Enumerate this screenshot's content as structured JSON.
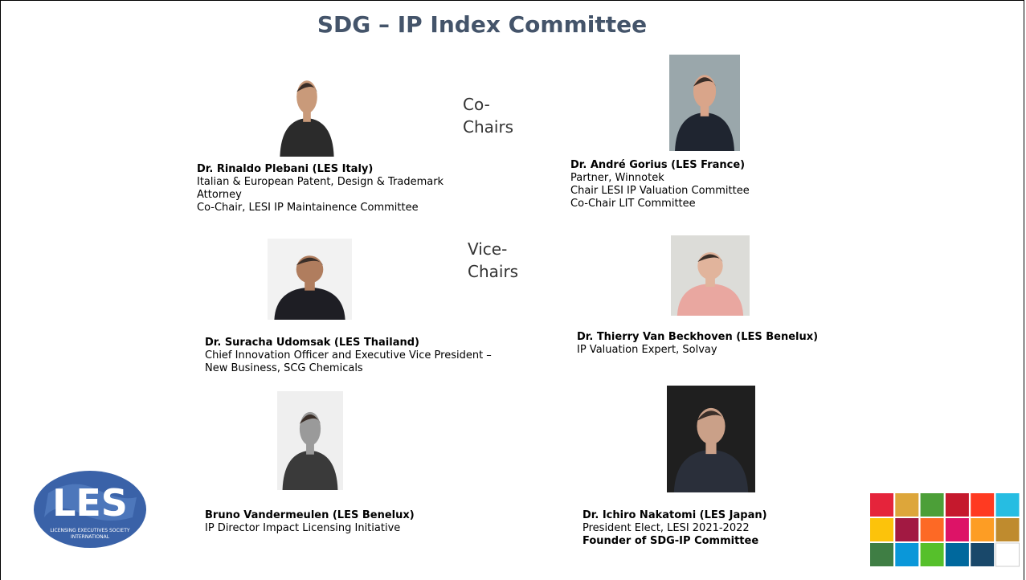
{
  "header": {
    "title": "SDG – IP Index Committee"
  },
  "roles": {
    "co_chairs": "Co-Chairs",
    "vice_chairs": "Vice-Chairs"
  },
  "people": [
    {
      "name": "Dr. Rinaldo Plebani (LES Italy)",
      "details": [
        " Italian & European Patent, Design & Trademark Attorney",
        "Co-Chair, LESI IP Maintainence Committee"
      ]
    },
    {
      "name": "Dr. André Gorius (LES France)",
      "details": [
        "Partner, Winnotek",
        "Chair LESI IP Valuation Committee",
        "Co-Chair LIT Committee"
      ]
    },
    {
      "name": "Dr. Suracha Udomsak (LES Thailand)",
      "details": [
        "Chief Innovation Officer and Executive Vice President – New Business, SCG Chemicals"
      ]
    },
    {
      "name": "Dr. Thierry Van Beckhoven (LES Benelux)",
      "details": [
        "IP Valuation Expert, Solvay"
      ]
    },
    {
      "name": "Bruno Vandermeulen (LES Benelux)",
      "details": [
        "IP Director Impact Licensing Initiative"
      ]
    },
    {
      "name": "Dr. Ichiro Nakatomi (LES Japan)",
      "details": [
        "President Elect, LESI 2021-2022"
      ],
      "note": "Founder of SDG-IP Committee"
    }
  ],
  "logo": {
    "mark": "LES",
    "society": "LICENSING EXECUTIVES SOCIETY",
    "region": "INTERNATIONAL"
  }
}
